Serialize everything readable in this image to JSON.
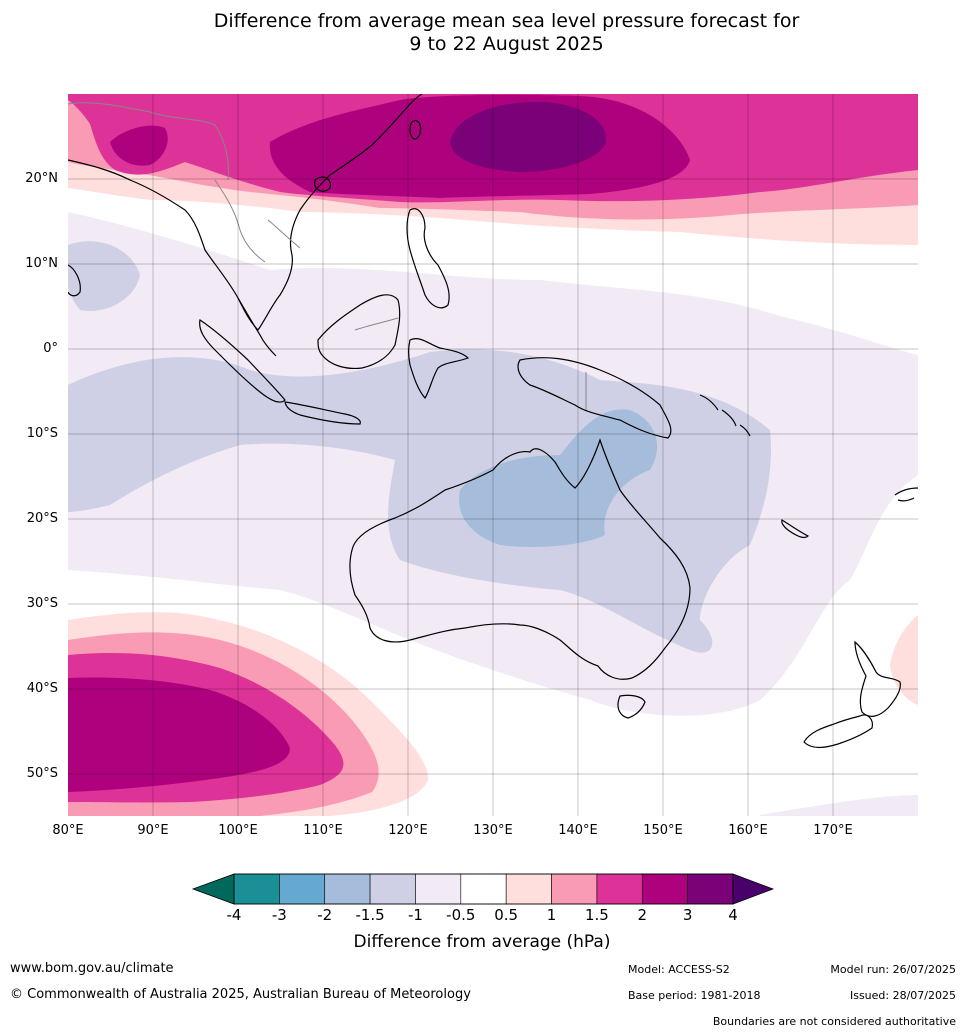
{
  "title": {
    "line1": "Difference from average mean sea level pressure forecast for",
    "line2": "9 to 22 August 2025"
  },
  "map": {
    "region": "Australasia, Indian and West Pacific Oceans",
    "lon_range": [
      80,
      180
    ],
    "lat_range": [
      -55,
      30
    ],
    "lat_labels": [
      "20°N",
      "10°N",
      "0°",
      "10°S",
      "20°S",
      "30°S",
      "40°S",
      "50°S"
    ],
    "lon_labels": [
      "80°E",
      "90°E",
      "100°E",
      "110°E",
      "120°E",
      "130°E",
      "140°E",
      "150°E",
      "160°E",
      "170°E"
    ],
    "gridlines": true
  },
  "colorbar": {
    "tick_labels": [
      "-4",
      "-3",
      "-2",
      "-1.5",
      "-1",
      "-0.5",
      "0.5",
      "1",
      "1.5",
      "2",
      "3",
      "4"
    ],
    "bin_colors": [
      "#1a9096",
      "#66a9d0",
      "#a6bcdb",
      "#cfd0e6",
      "#f2eaf4",
      "#ffffff",
      "#ffdede",
      "#f99bb4",
      "#dd3297",
      "#ae017e",
      "#7a0177"
    ],
    "under_color": "#00695c",
    "over_color": "#49006a",
    "label": "Difference from average (hPa)"
  },
  "footer": {
    "website": "www.bom.gov.au/climate",
    "copyright": "© Commonwealth of Australia 2025, Australian Bureau of Meteorology",
    "model": "Model: ACCESS-S2",
    "base_period": "Base period: 1981-2018",
    "model_run": "Model run: 26/07/2025",
    "issued": "Issued: 28/07/2025",
    "disclaimer": "Boundaries are not considered authoritative"
  }
}
